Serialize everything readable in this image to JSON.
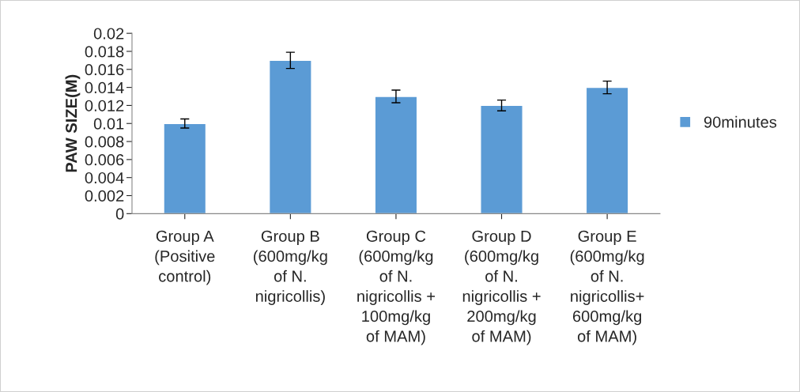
{
  "chart_data": {
    "type": "bar",
    "categories": [
      "Group A\n(Positive\ncontrol)",
      "Group B\n(600mg/kg\nof N.\nnigricollis)",
      "Group C\n(600mg/kg\nof N.\nnigricollis +\n100mg/kg\nof MAM)",
      "Group D\n(600mg/kg\nof N.\nnigricollis +\n200mg/kg\nof MAM)",
      "Group E\n(600mg/kg\nof N.\nnigricollis+\n600mg/kg\nof MAM)"
    ],
    "series": [
      {
        "name": "90minutes",
        "color": "#5b9bd5",
        "values": [
          0.01,
          0.017,
          0.013,
          0.012,
          0.014
        ],
        "errors": [
          0.0005,
          0.0009,
          0.0007,
          0.0006,
          0.0007
        ]
      }
    ],
    "ylabel": "PAW SIZE(M)",
    "ylim": [
      0,
      0.02
    ],
    "yticks": [
      0,
      0.002,
      0.004,
      0.006,
      0.008,
      0.01,
      0.012,
      0.014,
      0.016,
      0.018,
      0.02
    ],
    "grid": false,
    "legend": "right"
  }
}
